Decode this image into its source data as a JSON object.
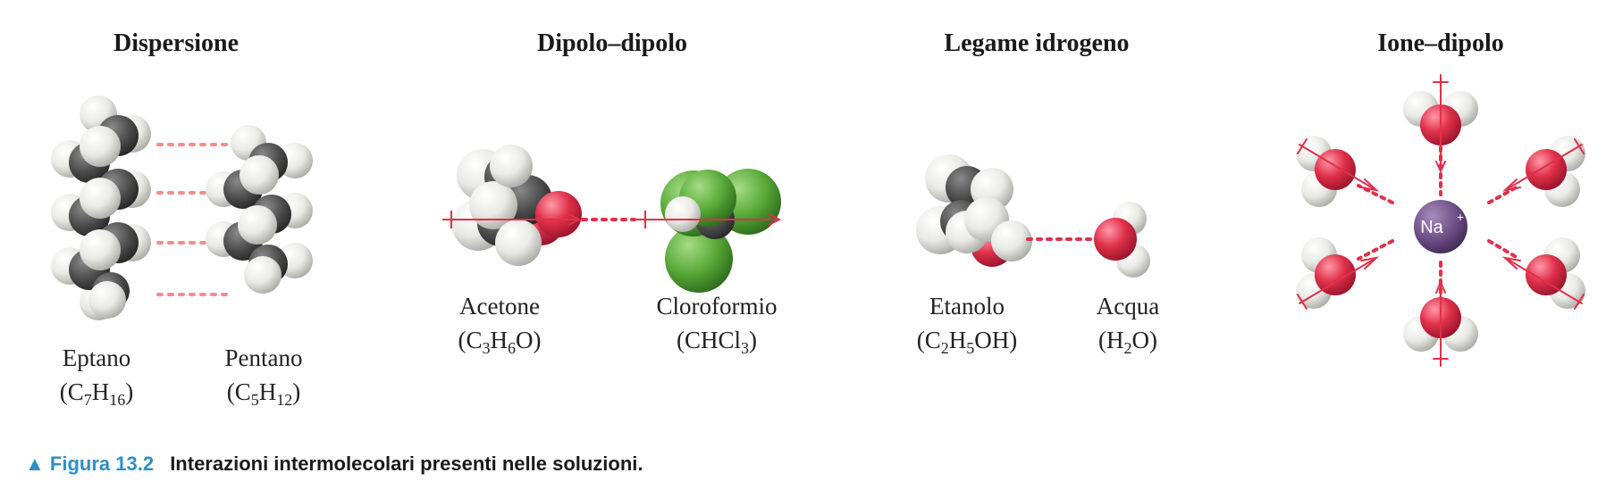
{
  "headings": {
    "dispersion": "Dispersione",
    "dipole_dipole": "Dipolo–dipolo",
    "hydrogen_bond": "Legame idrogeno",
    "ion_dipole": "Ione–dipolo"
  },
  "molecules": {
    "eptano": {
      "name": "Eptano",
      "formula": "(C7H16)"
    },
    "pentano": {
      "name": "Pentano",
      "formula": "(C5H12)"
    },
    "acetone": {
      "name": "Acetone",
      "formula": "(C3H6O)"
    },
    "cloroformio": {
      "name": "Cloroformio",
      "formula": "(CHCl3)"
    },
    "etanolo": {
      "name": "Etanolo",
      "formula": "(C2H5OH)"
    },
    "acqua": {
      "name": "Acqua",
      "formula": "(H2O)"
    }
  },
  "ion_label": "Na",
  "ion_charge": "+",
  "caption": {
    "marker": "▲",
    "figure": "Figura 13.2",
    "text": "Interazioni intermolecolari presenti nelle soluzioni."
  },
  "colors": {
    "hydrogen": "#e8e8e3",
    "carbon": "#4a4a4a",
    "oxygen": "#e0304a",
    "chlorine": "#58aa38",
    "sodium": "#6e4d86",
    "interaction": "#e0304a"
  }
}
